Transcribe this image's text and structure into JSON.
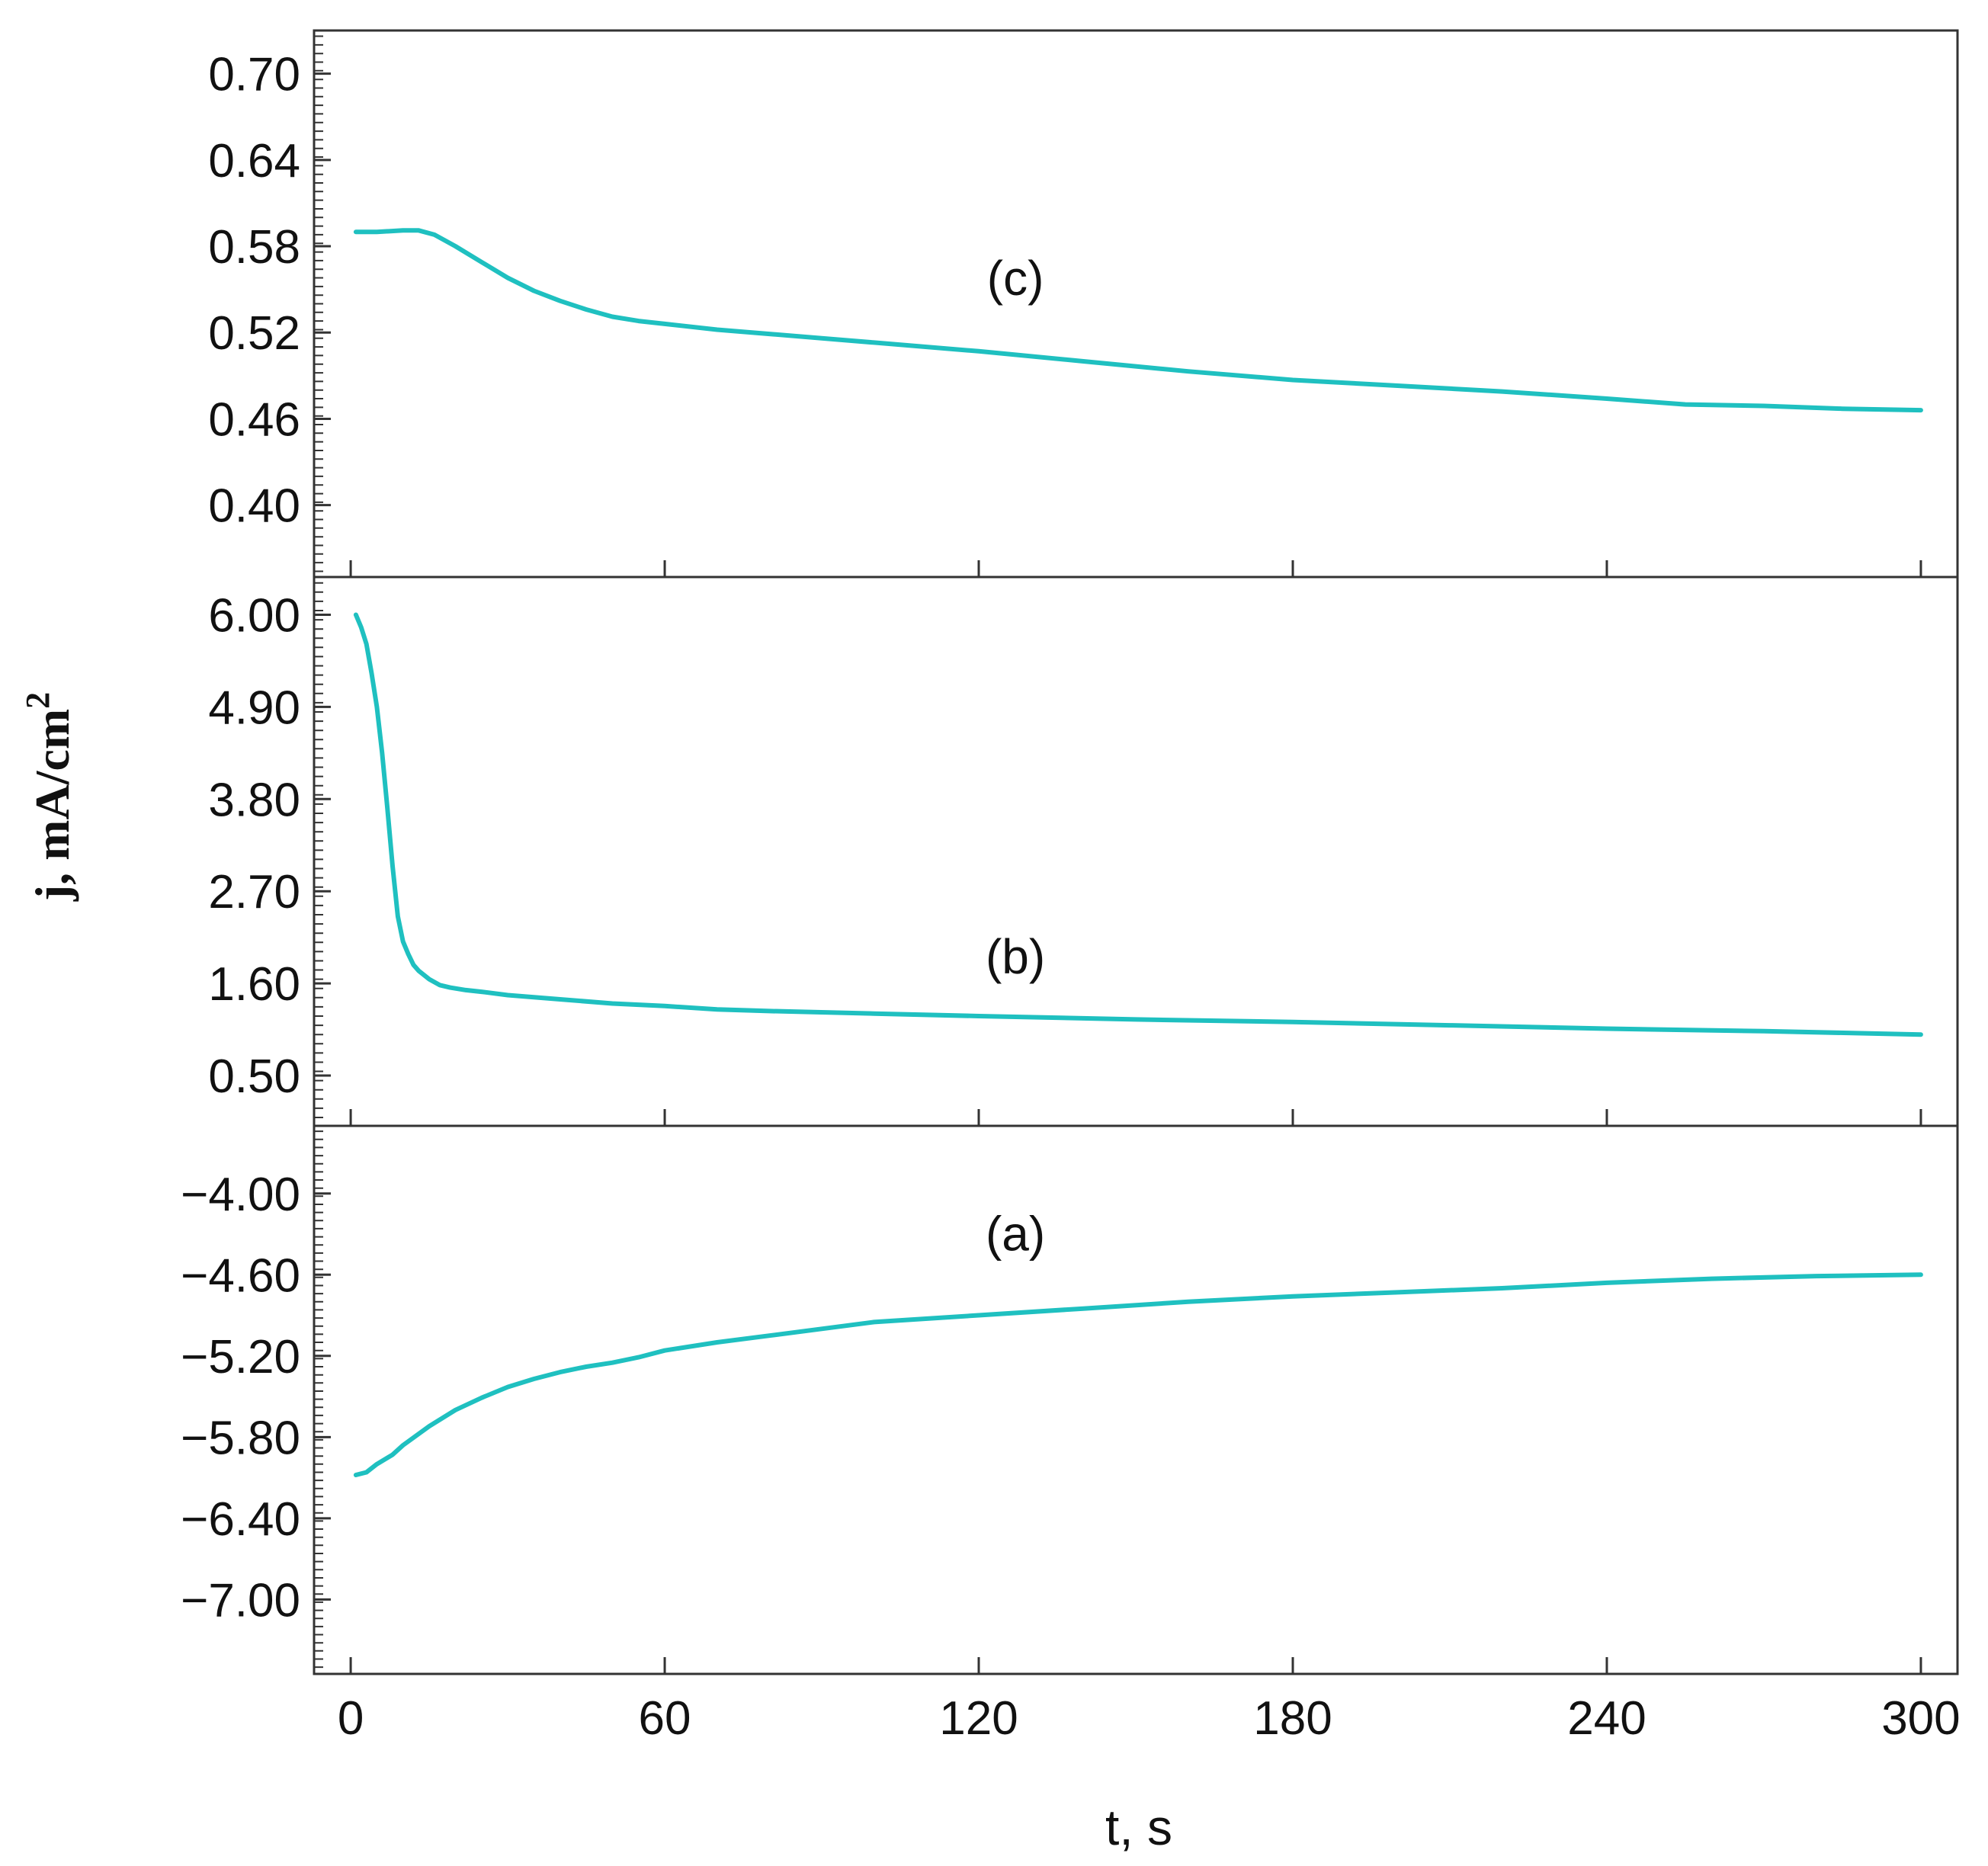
{
  "chart_data": {
    "type": "line",
    "x_axis": {
      "label": "t, s",
      "range": [
        -7,
        307
      ],
      "ticks": [
        0,
        60,
        120,
        180,
        240,
        300
      ],
      "tick_labels": [
        "0",
        "60",
        "120",
        "180",
        "240",
        "300"
      ]
    },
    "y_axis_label": {
      "main": "j, mA/cm",
      "superscript": "2"
    },
    "line_color": "#1fc0c0",
    "panels": [
      {
        "id": "c",
        "curve_label": "(c)",
        "label_at": [
          127,
          0.546
        ],
        "ylim": [
          0.35,
          0.73
        ],
        "yticks": [
          0.4,
          0.46,
          0.52,
          0.58,
          0.64,
          0.7
        ],
        "ytick_labels": [
          "0.40",
          "0.46",
          "0.52",
          "0.58",
          "0.64",
          "0.70"
        ],
        "minor_step": 0.006,
        "x": [
          1,
          5,
          10,
          13,
          16,
          20,
          25,
          30,
          35,
          40,
          45,
          50,
          55,
          60,
          70,
          80,
          90,
          100,
          120,
          140,
          160,
          180,
          200,
          220,
          240,
          255,
          270,
          285,
          300
        ],
        "y": [
          0.59,
          0.59,
          0.591,
          0.591,
          0.588,
          0.58,
          0.569,
          0.558,
          0.549,
          0.542,
          0.536,
          0.531,
          0.528,
          0.526,
          0.522,
          0.519,
          0.516,
          0.513,
          0.507,
          0.5,
          0.493,
          0.487,
          0.483,
          0.479,
          0.474,
          0.47,
          0.469,
          0.467,
          0.466
        ]
      },
      {
        "id": "b",
        "curve_label": "(b)",
        "label_at": [
          127,
          1.72
        ],
        "ylim": [
          -0.1,
          6.45
        ],
        "yticks": [
          0.5,
          1.6,
          2.7,
          3.8,
          4.9,
          6.0
        ],
        "ytick_labels": [
          "0.50",
          "1.60",
          "2.70",
          "3.80",
          "4.90",
          "6.00"
        ],
        "minor_step": 0.11,
        "x": [
          1,
          2,
          3,
          4,
          5,
          6,
          7,
          8,
          9,
          10,
          11,
          12,
          13,
          14,
          15,
          17,
          19,
          22,
          25,
          30,
          40,
          50,
          60,
          70,
          80,
          100,
          120,
          150,
          180,
          210,
          240,
          270,
          300
        ],
        "y": [
          6.0,
          5.85,
          5.65,
          5.3,
          4.9,
          4.35,
          3.7,
          3.0,
          2.4,
          2.1,
          1.95,
          1.82,
          1.75,
          1.7,
          1.65,
          1.58,
          1.55,
          1.52,
          1.5,
          1.46,
          1.41,
          1.36,
          1.33,
          1.29,
          1.27,
          1.24,
          1.21,
          1.17,
          1.14,
          1.1,
          1.06,
          1.03,
          0.99
        ]
      },
      {
        "id": "a",
        "curve_label": "(a)",
        "label_at": [
          127,
          -4.42
        ],
        "ylim": [
          -7.55,
          -3.5
        ],
        "yticks": [
          -7.0,
          -6.4,
          -5.8,
          -5.2,
          -4.6,
          -4.0
        ],
        "ytick_labels": [
          "−7.00",
          "−6.40",
          "−5.80",
          "−5.20",
          "−4.60",
          "−4.00"
        ],
        "minor_step": 0.06,
        "x": [
          1,
          3,
          5,
          8,
          10,
          15,
          20,
          25,
          30,
          35,
          40,
          45,
          50,
          55,
          60,
          70,
          80,
          90,
          100,
          120,
          140,
          160,
          180,
          200,
          220,
          240,
          260,
          280,
          300
        ],
        "y": [
          -6.08,
          -6.06,
          -6.0,
          -5.93,
          -5.86,
          -5.72,
          -5.6,
          -5.51,
          -5.43,
          -5.37,
          -5.32,
          -5.28,
          -5.25,
          -5.21,
          -5.16,
          -5.1,
          -5.05,
          -5.0,
          -4.95,
          -4.9,
          -4.85,
          -4.8,
          -4.76,
          -4.73,
          -4.7,
          -4.66,
          -4.63,
          -4.61,
          -4.6
        ]
      }
    ]
  }
}
